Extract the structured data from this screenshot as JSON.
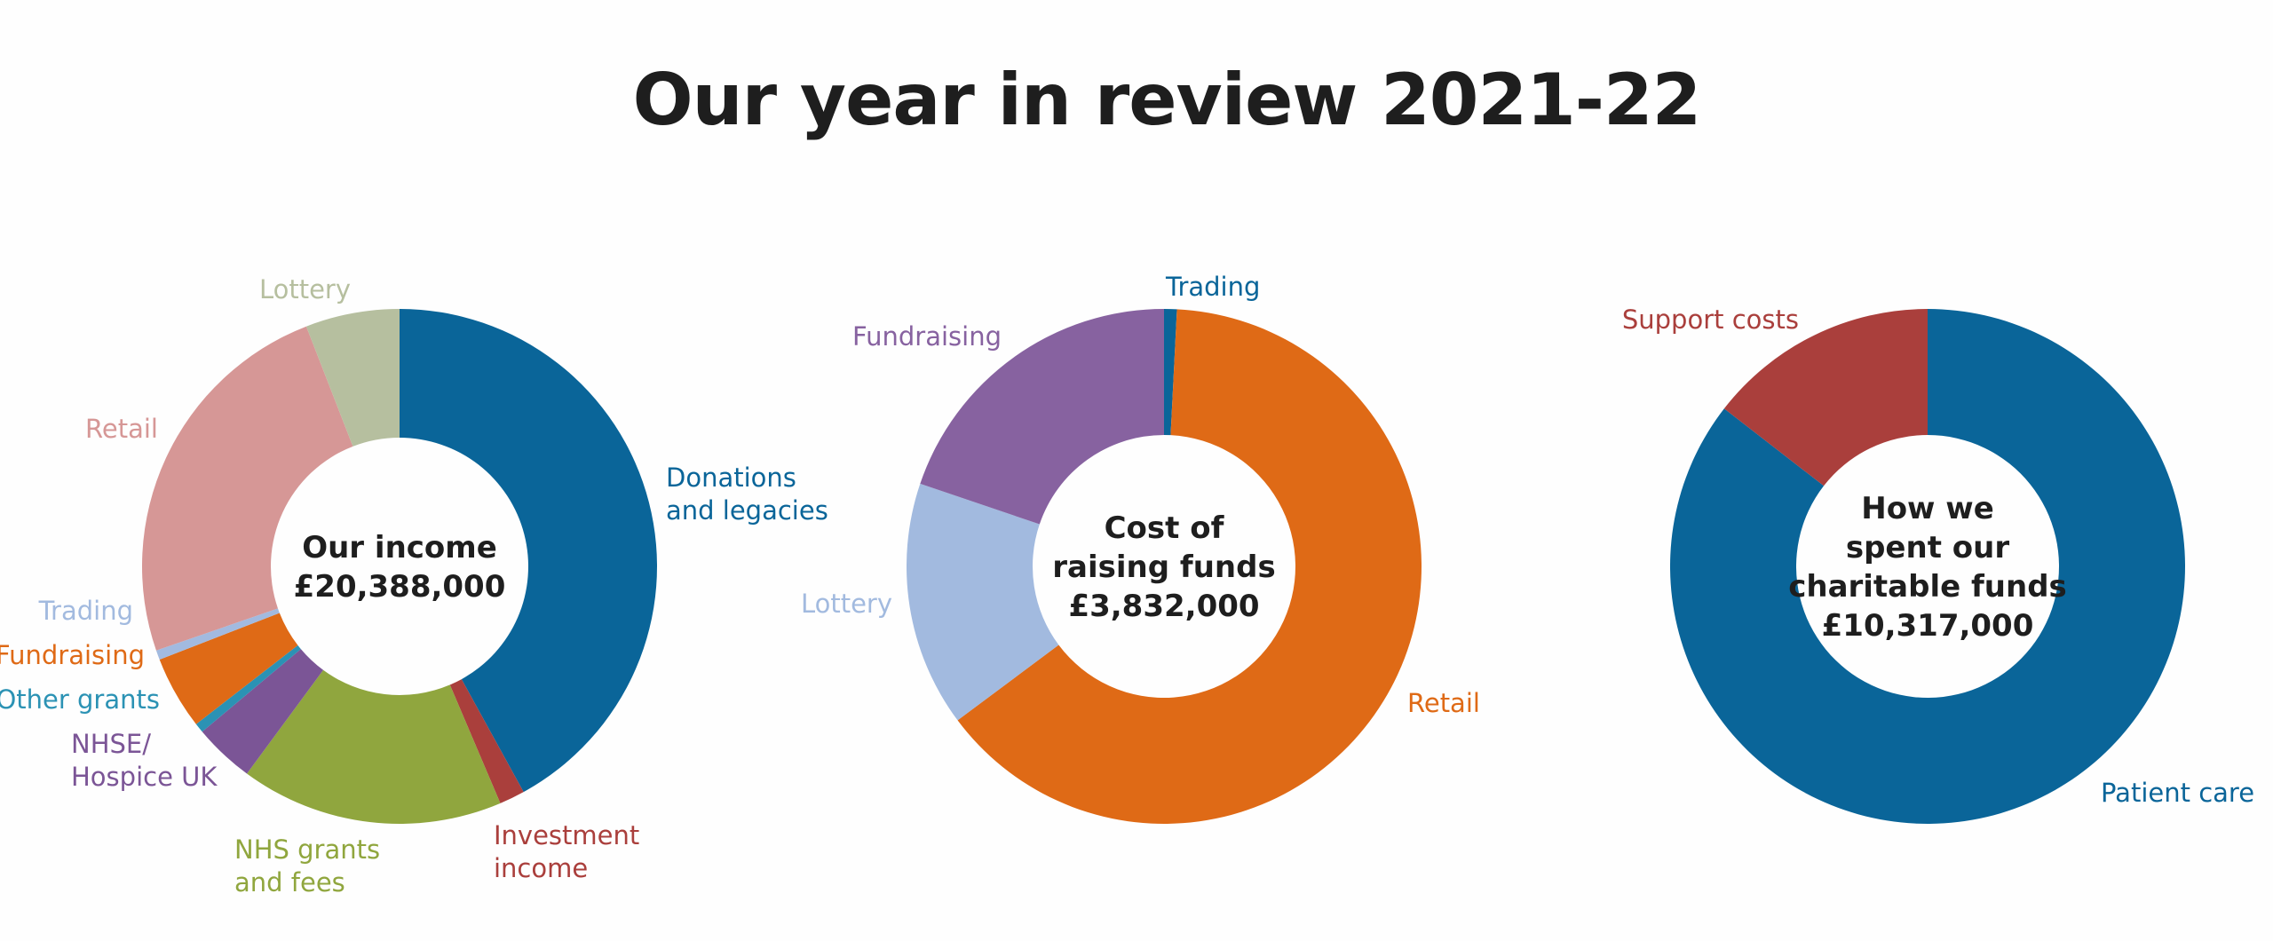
{
  "page": {
    "title": "Our year in review 2021-22"
  },
  "chart_data": [
    {
      "type": "pie",
      "donut": true,
      "center_text": [
        "Our income",
        "£20,388,000"
      ],
      "total_label": "£20,388,000",
      "slices": [
        {
          "label": [
            "Donations",
            "and legacies"
          ],
          "value": 42.0,
          "color": "#0a6599"
        },
        {
          "label": [
            "Investment",
            "income"
          ],
          "value": 1.6,
          "color": "#aa3f3c"
        },
        {
          "label": [
            "NHS grants",
            "and fees"
          ],
          "value": 16.5,
          "color": "#90a63e"
        },
        {
          "label": [
            "NHSE/",
            "Hospice UK"
          ],
          "value": 3.8,
          "color": "#7b5596"
        },
        {
          "label": [
            "Other grants"
          ],
          "value": 0.6,
          "color": "#2b92b4"
        },
        {
          "label": [
            "Fundraising"
          ],
          "value": 4.6,
          "color": "#df6a16"
        },
        {
          "label": [
            "Trading"
          ],
          "value": 0.6,
          "color": "#a2badf"
        },
        {
          "label": [
            "Retail"
          ],
          "value": 24.4,
          "color": "#d69796"
        },
        {
          "label": [
            "Lottery"
          ],
          "value": 5.9,
          "color": "#b6bf9f"
        }
      ]
    },
    {
      "type": "pie",
      "donut": true,
      "center_text": [
        "Cost of",
        "raising funds",
        "£3,832,000"
      ],
      "total_label": "£3,832,000",
      "slices": [
        {
          "label": [
            "Trading"
          ],
          "value": 0.8,
          "color": "#0a6599"
        },
        {
          "label": [
            "Retail"
          ],
          "value": 64.0,
          "color": "#df6a16"
        },
        {
          "label": [
            "Lottery"
          ],
          "value": 15.4,
          "color": "#a2badf"
        },
        {
          "label": [
            "Fundraising"
          ],
          "value": 19.8,
          "color": "#8762a0"
        }
      ]
    },
    {
      "type": "pie",
      "donut": true,
      "center_text": [
        "How we",
        "spent our",
        "charitable funds",
        "£10,317,000"
      ],
      "total_label": "£10,317,000",
      "slices": [
        {
          "label": [
            "Patient care"
          ],
          "value": 85.5,
          "color": "#0a6599"
        },
        {
          "label": [
            "Support costs"
          ],
          "value": 14.5,
          "color": "#aa3f3c"
        }
      ]
    }
  ]
}
